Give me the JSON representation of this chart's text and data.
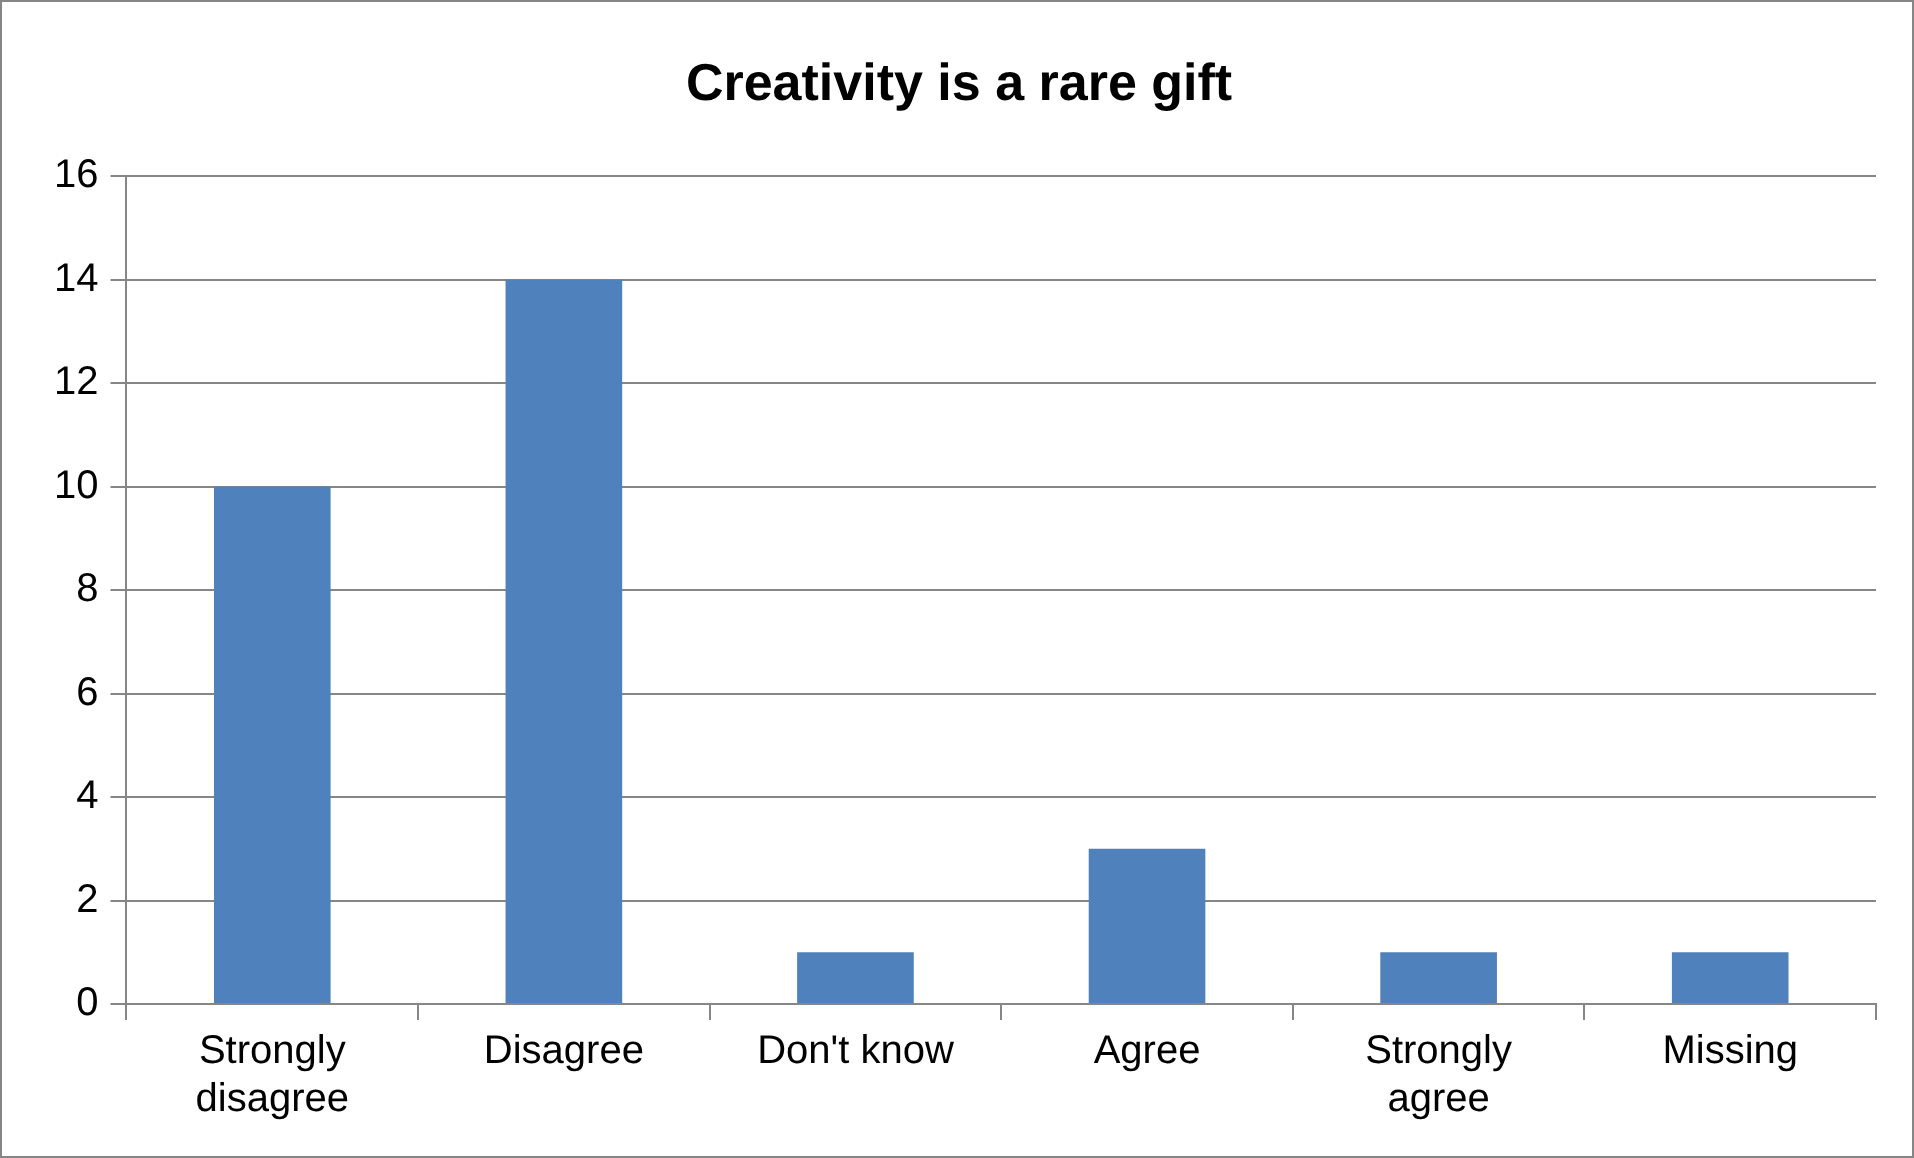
{
  "chart_data": {
    "type": "bar",
    "title": "Creativity is a rare gift",
    "categories": [
      "Strongly disagree",
      "Disagree",
      "Don't know",
      "Agree",
      "Strongly agree",
      "Missing"
    ],
    "values": [
      10,
      14,
      1,
      3,
      1,
      1
    ],
    "color": "#4f81bd",
    "ylim": [
      0,
      16
    ],
    "yticks": [
      0,
      2,
      4,
      6,
      8,
      10,
      12,
      14,
      16
    ],
    "grid": "y",
    "legend": false
  }
}
